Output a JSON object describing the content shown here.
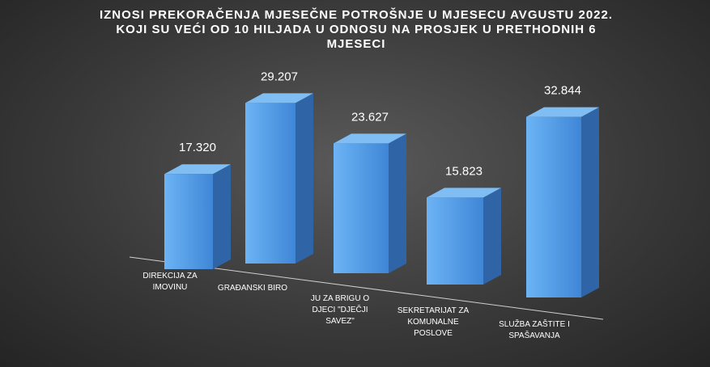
{
  "chart_data": {
    "type": "bar",
    "title": "IZNOSI PREKORAČENJA MJESEČNE POTROŠNJE U MJESECU AVGUSTU 2022. KOJI SU VEĆI OD 10 HILJADA U ODNOSU NA PROSJEK U PRETHODNIH 6 MJESECI",
    "categories": [
      "DIREKCIJA ZA IMOVINU",
      "GRAĐANSKI BIRO",
      "JU ZA BRIGU O DJECI \"DJEČJI SAVEZ\"",
      "SEKRETARIJAT ZA KOMUNALNE POSLOVE",
      "SLUŽBA ZAŠTITE I SPAŠAVANJA"
    ],
    "values": [
      17320,
      29207,
      23627,
      15823,
      32844
    ],
    "value_labels": [
      "17.320",
      "29.207",
      "23.627",
      "15.823",
      "32.844"
    ],
    "color": "#4f97e6"
  }
}
